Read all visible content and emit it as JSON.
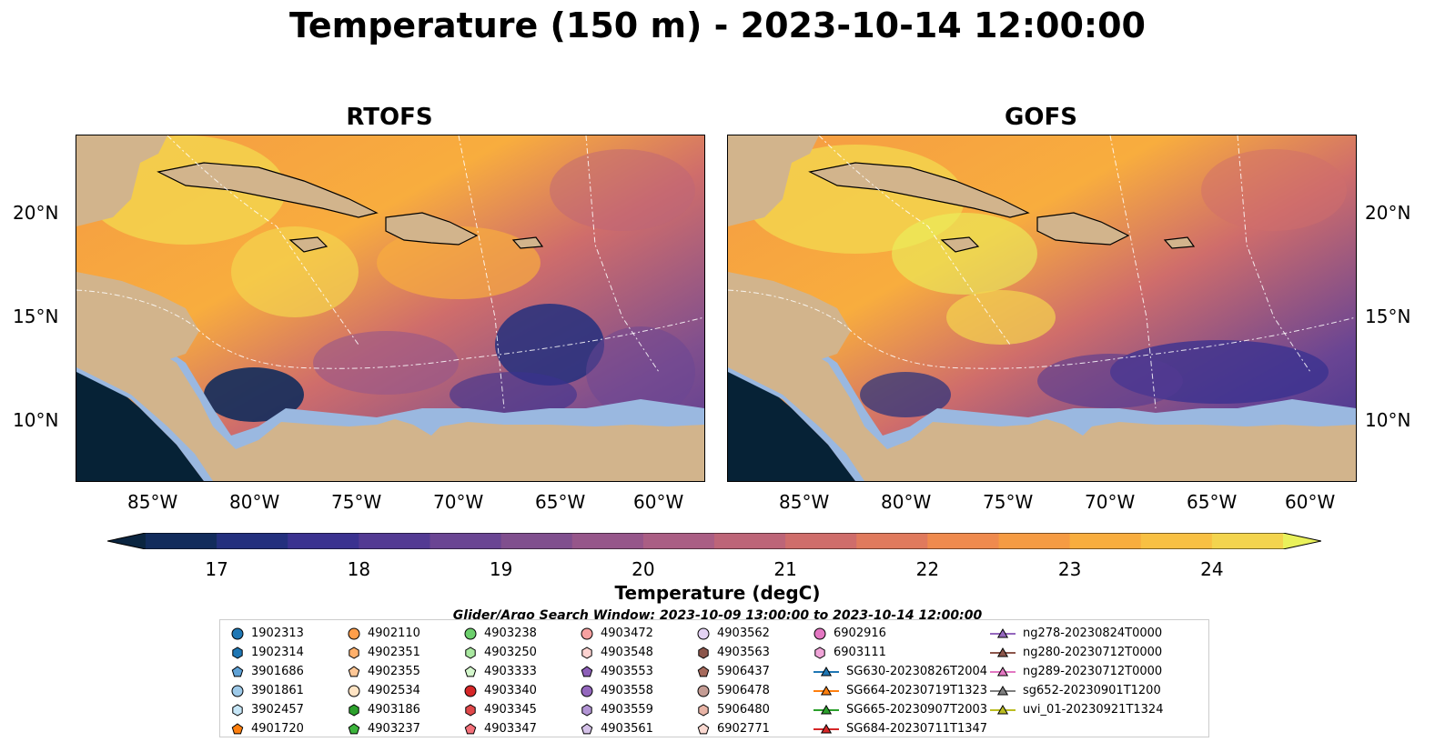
{
  "title": "Temperature (150 m) - 2023-10-14 12:00:00",
  "panels": [
    {
      "title": "RTOFS"
    },
    {
      "title": "GOFS"
    }
  ],
  "axes": {
    "lon_ticks": [
      "85°W",
      "80°W",
      "75°W",
      "70°W",
      "65°W",
      "60°W"
    ],
    "lat_ticks": [
      "20°N",
      "15°N",
      "10°N"
    ]
  },
  "colorbar": {
    "label": "Temperature (degC)",
    "ticks": [
      "17",
      "18",
      "19",
      "20",
      "21",
      "22",
      "23",
      "24"
    ],
    "range": [
      16.5,
      24.5
    ],
    "colors": [
      "#0b2540",
      "#122c5c",
      "#24307e",
      "#3b3290",
      "#533a93",
      "#6a4593",
      "#804f8e",
      "#96568a",
      "#aa5e84",
      "#bd6578",
      "#cf6d6b",
      "#e07a5d",
      "#ef8a4e",
      "#f59b43",
      "#f8ad3e",
      "#f8c043",
      "#f3d44e",
      "#e9f15b"
    ]
  },
  "search_window": "Glider/Argo Search Window: 2023-10-09 13:00:00 to 2023-10-14 12:00:00",
  "legend": [
    {
      "label": "1902313",
      "marker": "circle",
      "color": "#1f77b4"
    },
    {
      "label": "1902314",
      "marker": "hexagon",
      "color": "#1f77b4"
    },
    {
      "label": "3901686",
      "marker": "pentagon",
      "color": "#5fa2d6"
    },
    {
      "label": "3901861",
      "marker": "circle",
      "color": "#9ecae9"
    },
    {
      "label": "3902457",
      "marker": "hexagon",
      "color": "#c6e6f7"
    },
    {
      "label": "4901720",
      "marker": "pentagon",
      "color": "#ff7f0e"
    },
    {
      "label": "4902110",
      "marker": "circle",
      "color": "#ff9e4a"
    },
    {
      "label": "4902351",
      "marker": "hexagon",
      "color": "#ffb06b"
    },
    {
      "label": "4902355",
      "marker": "pentagon",
      "color": "#ffc796"
    },
    {
      "label": "4902534",
      "marker": "circle",
      "color": "#ffe4c4"
    },
    {
      "label": "4903186",
      "marker": "hexagon",
      "color": "#2ca02c"
    },
    {
      "label": "4903237",
      "marker": "pentagon",
      "color": "#3cb43c"
    },
    {
      "label": "4903238",
      "marker": "circle",
      "color": "#6ccf6c"
    },
    {
      "label": "4903250",
      "marker": "hexagon",
      "color": "#a9e8a0"
    },
    {
      "label": "4903333",
      "marker": "pentagon",
      "color": "#d4f7cc"
    },
    {
      "label": "4903340",
      "marker": "circle",
      "color": "#d62728"
    },
    {
      "label": "4903345",
      "marker": "hexagon",
      "color": "#e0484a"
    },
    {
      "label": "4903347",
      "marker": "pentagon",
      "color": "#f4717a"
    },
    {
      "label": "4903472",
      "marker": "circle",
      "color": "#f7a1a1"
    },
    {
      "label": "4903548",
      "marker": "hexagon",
      "color": "#fcd2d0"
    },
    {
      "label": "4903553",
      "marker": "pentagon",
      "color": "#8d5fb8"
    },
    {
      "label": "4903558",
      "marker": "circle",
      "color": "#9467bd"
    },
    {
      "label": "4903559",
      "marker": "hexagon",
      "color": "#b294d4"
    },
    {
      "label": "4903561",
      "marker": "pentagon",
      "color": "#d4c1e8"
    },
    {
      "label": "4903562",
      "marker": "circle",
      "color": "#e3d2f3"
    },
    {
      "label": "4903563",
      "marker": "hexagon",
      "color": "#8c564b"
    },
    {
      "label": "5906437",
      "marker": "pentagon",
      "color": "#a66a5c"
    },
    {
      "label": "5906478",
      "marker": "circle",
      "color": "#c49c94"
    },
    {
      "label": "5906480",
      "marker": "hexagon",
      "color": "#e8b4a6"
    },
    {
      "label": "6902771",
      "marker": "pentagon",
      "color": "#fbd9d1"
    },
    {
      "label": "6902916",
      "marker": "circle",
      "color": "#e377c2"
    },
    {
      "label": "6903111",
      "marker": "hexagon",
      "color": "#f0a4d8"
    },
    {
      "label": "SG630-20230826T2004",
      "marker": "triangle",
      "color": "#1f77b4"
    },
    {
      "label": "SG664-20230719T1323",
      "marker": "triangle",
      "color": "#ff7f0e"
    },
    {
      "label": "SG665-20230907T2003",
      "marker": "triangle",
      "color": "#2ca02c"
    },
    {
      "label": "SG684-20230711T1347",
      "marker": "triangle",
      "color": "#d62728"
    },
    {
      "label": "ng278-20230824T0000",
      "marker": "triangle",
      "color": "#9467bd"
    },
    {
      "label": "ng280-20230712T0000",
      "marker": "triangle",
      "color": "#8c564b"
    },
    {
      "label": "ng289-20230712T0000",
      "marker": "triangle",
      "color": "#e377c2"
    },
    {
      "label": "sg652-20230901T1200",
      "marker": "triangle",
      "color": "#7f7f7f"
    },
    {
      "label": "uvi_01-20230921T1324",
      "marker": "triangle",
      "color": "#bcbd22"
    }
  ],
  "colors": {
    "land": "#d2b48c",
    "shelf": "#9ab8e0",
    "deep": "#062236"
  }
}
